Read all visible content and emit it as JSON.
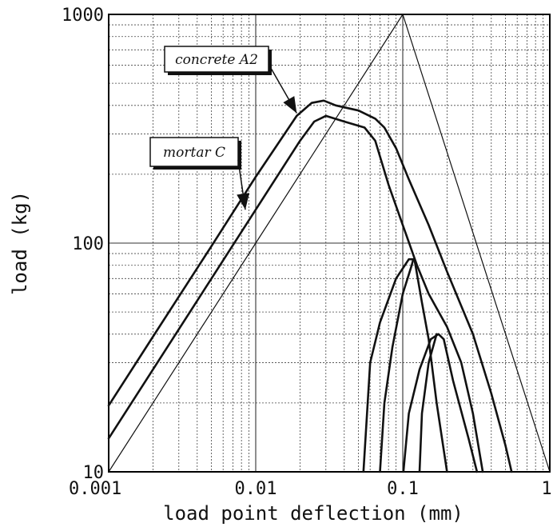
{
  "chart_data": {
    "type": "line",
    "xscale": "log",
    "yscale": "log",
    "xlim": [
      0.001,
      1
    ],
    "ylim": [
      10,
      1000
    ],
    "xlabel": "load point deflection (mm)",
    "ylabel": "load (kg)",
    "grid": true,
    "x_ticks": [
      {
        "value": 0.001,
        "label": "0.001"
      },
      {
        "value": 0.01,
        "label": "0.01"
      },
      {
        "value": 0.1,
        "label": "0.1"
      },
      {
        "value": 1,
        "label": "1"
      }
    ],
    "y_ticks": [
      {
        "value": 10,
        "label": "10"
      },
      {
        "value": 100,
        "label": "100"
      },
      {
        "value": 1000,
        "label": "1000"
      }
    ],
    "annotations": [
      {
        "text": "concrete A2",
        "arrow_to": [
          0.019,
          370
        ]
      },
      {
        "text": "mortar C",
        "arrow_to": [
          0.0085,
          140
        ]
      }
    ],
    "series": [
      {
        "points": [
          [
            0.001,
            19.5
          ],
          [
            0.002,
            39
          ],
          [
            0.005,
            97
          ],
          [
            0.01,
            195
          ],
          [
            0.019,
            360
          ],
          [
            0.024,
            410
          ],
          [
            0.029,
            420
          ],
          [
            0.035,
            400
          ],
          [
            0.05,
            380
          ],
          [
            0.065,
            350
          ],
          [
            0.075,
            320
          ],
          [
            0.09,
            260
          ],
          [
            0.11,
            190
          ],
          [
            0.15,
            120
          ],
          [
            0.2,
            75
          ],
          [
            0.3,
            40
          ],
          [
            0.4,
            22
          ],
          [
            0.5,
            13
          ],
          [
            0.55,
            10
          ]
        ]
      },
      {
        "points": [
          [
            0.001,
            14
          ],
          [
            0.002,
            28
          ],
          [
            0.005,
            70
          ],
          [
            0.01,
            140
          ],
          [
            0.02,
            280
          ],
          [
            0.025,
            340
          ],
          [
            0.03,
            360
          ],
          [
            0.04,
            340
          ],
          [
            0.055,
            320
          ],
          [
            0.065,
            280
          ],
          [
            0.08,
            180
          ],
          [
            0.1,
            120
          ],
          [
            0.125,
            80
          ],
          [
            0.15,
            60
          ],
          [
            0.2,
            43
          ],
          [
            0.25,
            30
          ],
          [
            0.3,
            18
          ],
          [
            0.35,
            10
          ]
        ]
      },
      {
        "points": [
          [
            0.054,
            10
          ],
          [
            0.06,
            30
          ],
          [
            0.07,
            45
          ],
          [
            0.09,
            70
          ],
          [
            0.11,
            85
          ],
          [
            0.12,
            85
          ],
          [
            0.135,
            55
          ],
          [
            0.15,
            38
          ],
          [
            0.17,
            20
          ],
          [
            0.2,
            10
          ]
        ]
      },
      {
        "points": [
          [
            0.101,
            10
          ],
          [
            0.11,
            18
          ],
          [
            0.13,
            28
          ],
          [
            0.155,
            38
          ],
          [
            0.175,
            40
          ],
          [
            0.19,
            38
          ],
          [
            0.22,
            25
          ],
          [
            0.28,
            14
          ],
          [
            0.32,
            10
          ]
        ]
      },
      {
        "points": [
          [
            0.07,
            10
          ],
          [
            0.075,
            20
          ],
          [
            0.085,
            35
          ],
          [
            0.1,
            60
          ],
          [
            0.115,
            80
          ],
          [
            0.118,
            85
          ]
        ]
      },
      {
        "points": [
          [
            0.13,
            10
          ],
          [
            0.135,
            18
          ],
          [
            0.15,
            30
          ],
          [
            0.17,
            40
          ]
        ]
      },
      {
        "points": [
          [
            0.001,
            10
          ],
          [
            0.01,
            100
          ],
          [
            0.1,
            1000
          ],
          [
            1,
            10
          ]
        ]
      }
    ]
  }
}
